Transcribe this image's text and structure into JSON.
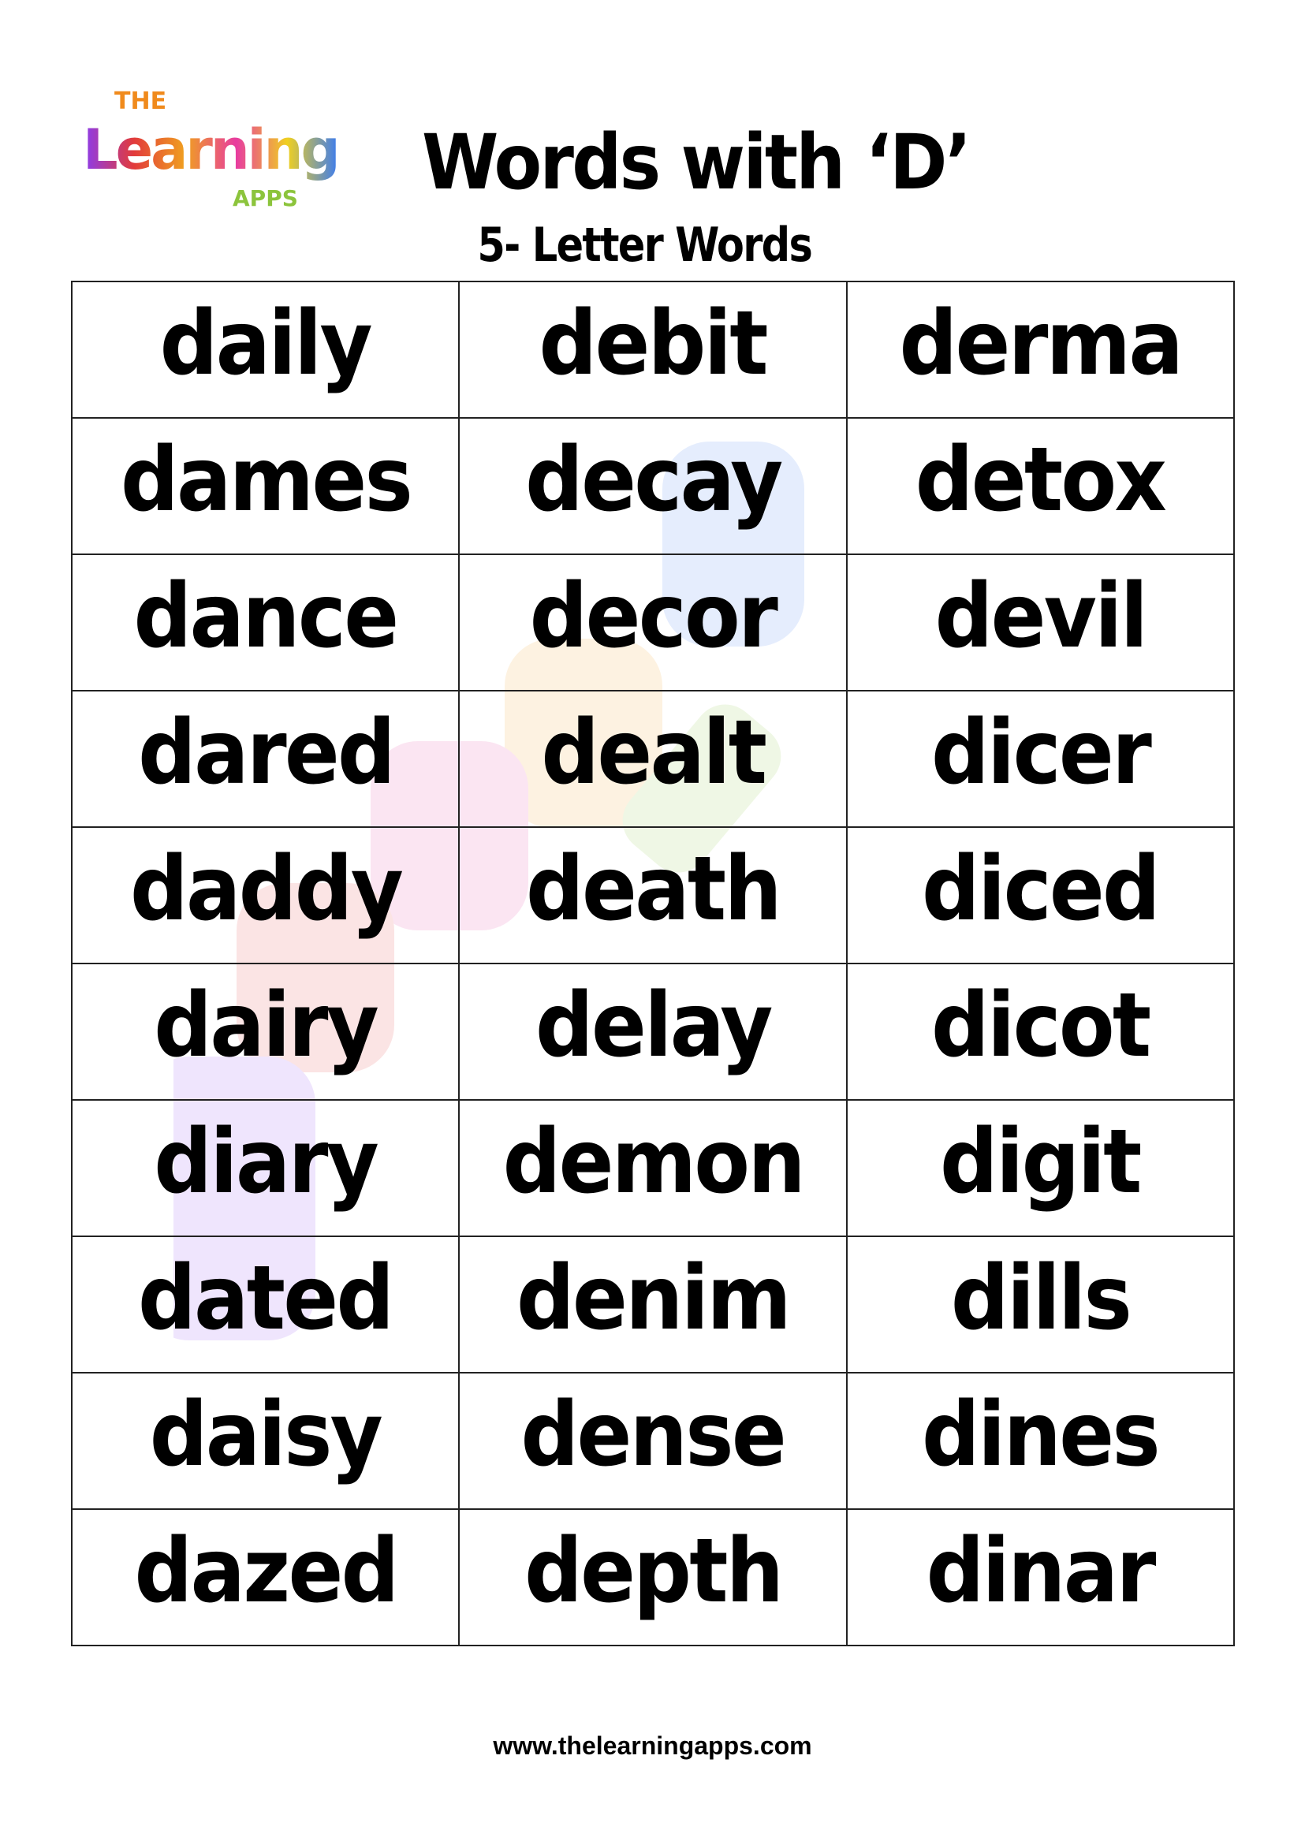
{
  "logo": {
    "line1": "THE",
    "line2": "Learning",
    "line3": "APPS"
  },
  "header": {
    "title": "Words with ‘D’",
    "subtitle": "5- Letter Words"
  },
  "words": [
    [
      "daily",
      "debit",
      "derma"
    ],
    [
      "dames",
      "decay",
      "detox"
    ],
    [
      "dance",
      "decor",
      "devil"
    ],
    [
      "dared",
      "dealt",
      "dicer"
    ],
    [
      "daddy",
      "death",
      "diced"
    ],
    [
      "dairy",
      "delay",
      "dicot"
    ],
    [
      "diary",
      "demon",
      "digit"
    ],
    [
      "dated",
      "denim",
      "dills"
    ],
    [
      "daisy",
      "dense",
      "dines"
    ],
    [
      "dazed",
      "depth",
      "dinar"
    ]
  ],
  "footer": {
    "url": "www.thelearningapps.com"
  }
}
